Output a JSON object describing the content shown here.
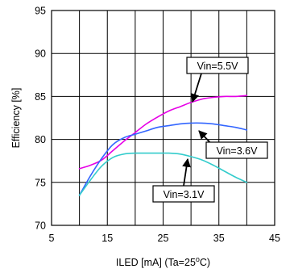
{
  "chart_data": {
    "type": "line",
    "title": "",
    "xlabel": "ILED [mA] (Ta=25",
    "xlabel_degree": "o",
    "xlabel_suffix": "C)",
    "ylabel": "Efficiency [%]",
    "xlim": [
      5,
      45
    ],
    "ylim": [
      70,
      95
    ],
    "x_ticks": [
      5,
      15,
      25,
      35,
      45
    ],
    "y_ticks": [
      70,
      75,
      80,
      85,
      90,
      95
    ],
    "grid": true,
    "legend": "callouts",
    "series": [
      {
        "name": "Vin=5.5V",
        "color": "#e600e6",
        "x": [
          10,
          12,
          14,
          16,
          18,
          20,
          22,
          24,
          26,
          28,
          30,
          32,
          34,
          36,
          38,
          40
        ],
        "y": [
          76.6,
          77.0,
          77.6,
          78.7,
          79.8,
          80.8,
          81.8,
          82.6,
          83.3,
          83.8,
          84.3,
          84.7,
          84.9,
          85.0,
          85.0,
          85.1
        ]
      },
      {
        "name": "Vin=3.6V",
        "color": "#3366ff",
        "x": [
          10,
          12,
          14,
          16,
          18,
          20,
          22,
          24,
          26,
          28,
          30,
          32,
          34,
          36,
          38,
          40
        ],
        "y": [
          73.5,
          75.8,
          77.8,
          79.4,
          80.2,
          80.6,
          81.0,
          81.4,
          81.6,
          81.8,
          81.9,
          81.9,
          81.8,
          81.6,
          81.4,
          81.1
        ]
      },
      {
        "name": "Vin=3.1V",
        "color": "#33cccc",
        "x": [
          10,
          12,
          14,
          16,
          18,
          20,
          22,
          24,
          26,
          28,
          30,
          32,
          34,
          36,
          38,
          40
        ],
        "y": [
          73.5,
          75.3,
          76.9,
          77.9,
          78.3,
          78.4,
          78.4,
          78.4,
          78.4,
          78.3,
          78.0,
          77.6,
          77.0,
          76.3,
          75.6,
          75.0
        ]
      }
    ]
  }
}
